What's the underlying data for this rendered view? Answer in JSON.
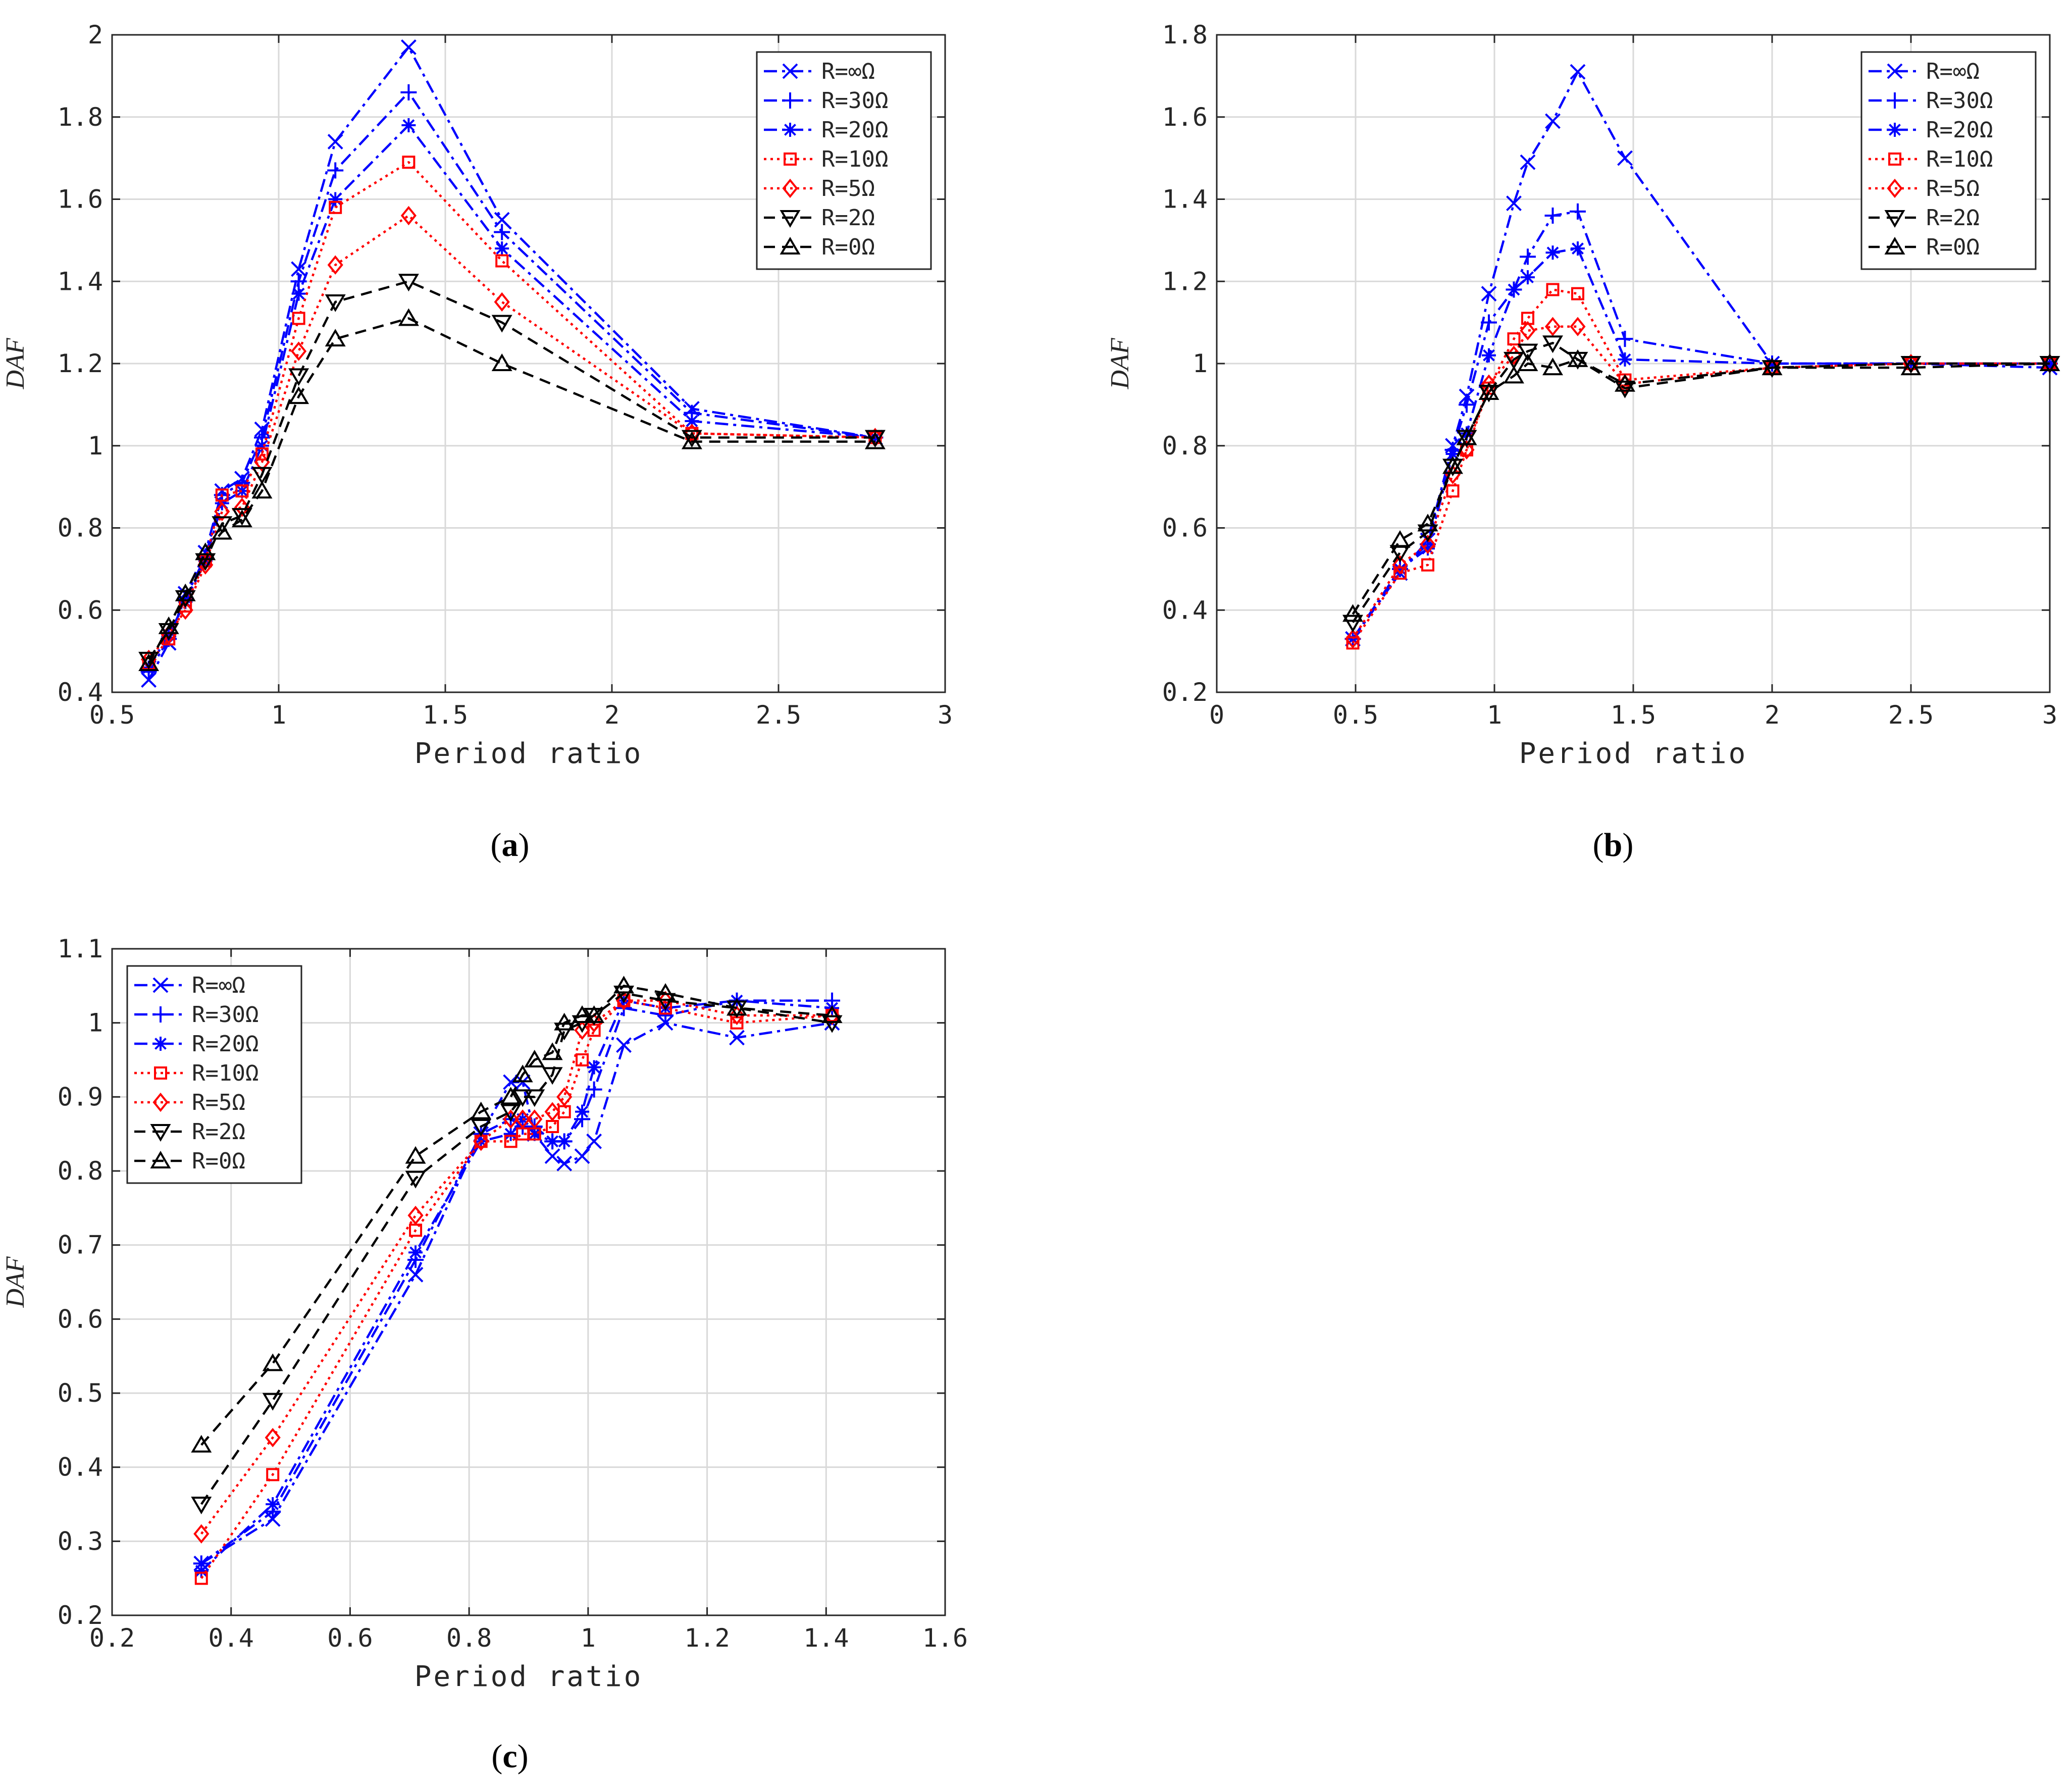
{
  "series_styles": [
    {
      "name": "R=∞Ω",
      "color": "#0000ff",
      "dash": "26 10 6 10",
      "marker": "x"
    },
    {
      "name": "R=30Ω",
      "color": "#0000ff",
      "dash": "26 10 6 10",
      "marker": "plus"
    },
    {
      "name": "R=20Ω",
      "color": "#0000ff",
      "dash": "26 10 6 10",
      "marker": "star"
    },
    {
      "name": "R=10Ω",
      "color": "#ff0000",
      "dash": "5 8",
      "marker": "square"
    },
    {
      "name": "R=5Ω",
      "color": "#ff0000",
      "dash": "5 8",
      "marker": "diamond"
    },
    {
      "name": "R=2Ω",
      "color": "#000000",
      "dash": "22 14",
      "marker": "tri-down"
    },
    {
      "name": "R=0Ω",
      "color": "#000000",
      "dash": "22 14",
      "marker": "tri-up"
    }
  ],
  "chart_data": [
    {
      "type": "line",
      "panel_label": "(a)",
      "panel_letter": "a",
      "xlabel": "Period ratio",
      "ylabel": "DAF",
      "xlim": [
        0.5,
        3
      ],
      "ylim": [
        0.4,
        2
      ],
      "xticks": [
        0.5,
        1,
        1.5,
        2,
        2.5,
        3
      ],
      "xtick_labels": [
        "0.5",
        "1",
        "1.5",
        "2",
        "2.5",
        "3"
      ],
      "yticks": [
        0.4,
        0.6,
        0.8,
        1,
        1.2,
        1.4,
        1.6,
        1.8,
        2
      ],
      "ytick_labels": [
        "0.4",
        "0.6",
        "0.8",
        "1",
        "1.2",
        "1.4",
        "1.6",
        "1.8",
        "2"
      ],
      "legend": "top-right",
      "x": [
        0.61,
        0.67,
        0.72,
        0.78,
        0.83,
        0.89,
        0.95,
        1.06,
        1.17,
        1.39,
        1.67,
        2.24,
        2.79
      ],
      "series": [
        {
          "name": "R=∞Ω",
          "values": [
            0.43,
            0.52,
            0.64,
            0.74,
            0.89,
            0.92,
            1.04,
            1.43,
            1.74,
            1.97,
            1.55,
            1.09,
            1.02
          ]
        },
        {
          "name": "R=30Ω",
          "values": [
            0.45,
            0.53,
            0.63,
            0.73,
            0.88,
            0.91,
            1.02,
            1.4,
            1.67,
            1.86,
            1.52,
            1.08,
            1.02
          ]
        },
        {
          "name": "R=20Ω",
          "values": [
            0.46,
            0.54,
            0.62,
            0.72,
            0.86,
            0.89,
            1.0,
            1.37,
            1.6,
            1.78,
            1.48,
            1.06,
            1.02
          ]
        },
        {
          "name": "R=10Ω",
          "values": [
            0.47,
            0.53,
            0.61,
            0.72,
            0.88,
            0.89,
            0.98,
            1.31,
            1.58,
            1.69,
            1.45,
            1.03,
            1.02
          ]
        },
        {
          "name": "R=5Ω",
          "values": [
            0.48,
            0.54,
            0.6,
            0.71,
            0.84,
            0.85,
            0.96,
            1.23,
            1.44,
            1.56,
            1.35,
            1.03,
            1.02
          ]
        },
        {
          "name": "R=2Ω",
          "values": [
            0.48,
            0.55,
            0.63,
            0.72,
            0.81,
            0.83,
            0.93,
            1.17,
            1.35,
            1.4,
            1.3,
            1.02,
            1.02
          ]
        },
        {
          "name": "R=0Ω",
          "values": [
            0.47,
            0.56,
            0.64,
            0.74,
            0.79,
            0.82,
            0.89,
            1.12,
            1.26,
            1.31,
            1.2,
            1.01,
            1.01
          ]
        }
      ]
    },
    {
      "type": "line",
      "panel_label": "(b)",
      "panel_letter": "b",
      "xlabel": "Period ratio",
      "ylabel": "DAF",
      "xlim": [
        0,
        3
      ],
      "ylim": [
        0.2,
        1.8
      ],
      "xticks": [
        0,
        0.5,
        1,
        1.5,
        2,
        2.5,
        3
      ],
      "xtick_labels": [
        "0",
        "0.5",
        "1",
        "1.5",
        "2",
        "2.5",
        "3"
      ],
      "yticks": [
        0.2,
        0.4,
        0.6,
        0.8,
        1,
        1.2,
        1.4,
        1.6,
        1.8
      ],
      "ytick_labels": [
        "0.2",
        "0.4",
        "0.6",
        "0.8",
        "1",
        "1.2",
        "1.4",
        "1.6",
        "1.8"
      ],
      "legend": "top-right",
      "x": [
        0.49,
        0.66,
        0.76,
        0.85,
        0.9,
        0.98,
        1.07,
        1.12,
        1.21,
        1.3,
        1.47,
        2.0,
        2.5,
        3.0
      ],
      "series": [
        {
          "name": "R=∞Ω",
          "values": [
            0.33,
            0.49,
            0.57,
            0.8,
            0.92,
            1.17,
            1.39,
            1.49,
            1.59,
            1.71,
            1.5,
            1.0,
            1.0,
            0.99
          ]
        },
        {
          "name": "R=30Ω",
          "values": [
            0.33,
            0.5,
            0.56,
            0.79,
            0.9,
            1.1,
            1.18,
            1.26,
            1.36,
            1.37,
            1.06,
            1.0,
            1.0,
            1.0
          ]
        },
        {
          "name": "R=20Ω",
          "values": [
            0.33,
            0.5,
            0.55,
            0.78,
            0.83,
            1.02,
            1.18,
            1.21,
            1.27,
            1.28,
            1.01,
            1.0,
            1.0,
            1.0
          ]
        },
        {
          "name": "R=10Ω",
          "values": [
            0.32,
            0.49,
            0.51,
            0.69,
            0.79,
            0.94,
            1.06,
            1.11,
            1.18,
            1.17,
            0.96,
            0.99,
            1.0,
            1.0
          ]
        },
        {
          "name": "R=5Ω",
          "values": [
            0.33,
            0.51,
            0.56,
            0.73,
            0.79,
            0.95,
            1.02,
            1.08,
            1.09,
            1.09,
            0.95,
            0.99,
            1.0,
            1.0
          ]
        },
        {
          "name": "R=2Ω",
          "values": [
            0.37,
            0.54,
            0.59,
            0.75,
            0.82,
            0.93,
            1.01,
            1.03,
            1.05,
            1.01,
            0.94,
            0.99,
            1.0,
            1.0
          ]
        },
        {
          "name": "R=0Ω",
          "values": [
            0.39,
            0.57,
            0.61,
            0.75,
            0.82,
            0.93,
            0.97,
            1.0,
            0.99,
            1.01,
            0.95,
            0.99,
            0.99,
            1.0
          ]
        }
      ]
    },
    {
      "type": "line",
      "panel_label": "(c)",
      "panel_letter": "c",
      "xlabel": "Period ratio",
      "ylabel": "DAF",
      "xlim": [
        0.2,
        1.6
      ],
      "ylim": [
        0.2,
        1.1
      ],
      "xticks": [
        0.2,
        0.4,
        0.6,
        0.8,
        1,
        1.2,
        1.4,
        1.6
      ],
      "xtick_labels": [
        "0.2",
        "0.4",
        "0.6",
        "0.8",
        "1",
        "1.2",
        "1.4",
        "1.6"
      ],
      "yticks": [
        0.2,
        0.3,
        0.4,
        0.5,
        0.6,
        0.7,
        0.8,
        0.9,
        1,
        1.1
      ],
      "ytick_labels": [
        "0.2",
        "0.3",
        "0.4",
        "0.5",
        "0.6",
        "0.7",
        "0.8",
        "0.9",
        "1",
        "1.1"
      ],
      "legend": "top-left",
      "x": [
        0.35,
        0.47,
        0.71,
        0.82,
        0.87,
        0.89,
        0.91,
        0.94,
        0.96,
        0.99,
        1.01,
        1.06,
        1.13,
        1.25,
        1.41
      ],
      "series": [
        {
          "name": "R=∞Ω",
          "values": [
            0.27,
            0.33,
            0.66,
            0.85,
            0.92,
            0.92,
            0.85,
            0.82,
            0.81,
            0.82,
            0.84,
            0.97,
            1.0,
            0.98,
            1.0
          ]
        },
        {
          "name": "R=30Ω",
          "values": [
            0.27,
            0.34,
            0.68,
            0.85,
            0.87,
            0.86,
            0.86,
            0.84,
            0.84,
            0.87,
            0.91,
            1.02,
            1.01,
            1.03,
            1.03
          ]
        },
        {
          "name": "R=20Ω",
          "values": [
            0.26,
            0.35,
            0.69,
            0.84,
            0.85,
            0.87,
            0.85,
            0.84,
            0.84,
            0.88,
            0.94,
            1.03,
            1.02,
            1.03,
            1.02
          ]
        },
        {
          "name": "R=10Ω",
          "values": [
            0.25,
            0.39,
            0.72,
            0.84,
            0.84,
            0.85,
            0.85,
            0.86,
            0.88,
            0.95,
            0.99,
            1.03,
            1.02,
            1.0,
            1.01
          ]
        },
        {
          "name": "R=5Ω",
          "values": [
            0.31,
            0.44,
            0.74,
            0.84,
            0.87,
            0.87,
            0.87,
            0.88,
            0.9,
            0.99,
            1.0,
            1.03,
            1.03,
            1.01,
            1.01
          ]
        },
        {
          "name": "R=2Ω",
          "values": [
            0.35,
            0.49,
            0.79,
            0.86,
            0.88,
            0.9,
            0.9,
            0.93,
            0.99,
            1.0,
            1.01,
            1.04,
            1.03,
            1.02,
            1.0
          ]
        },
        {
          "name": "R=0Ω",
          "values": [
            0.43,
            0.54,
            0.82,
            0.88,
            0.9,
            0.93,
            0.95,
            0.96,
            1.0,
            1.01,
            1.01,
            1.05,
            1.04,
            1.02,
            1.01
          ]
        }
      ]
    }
  ]
}
